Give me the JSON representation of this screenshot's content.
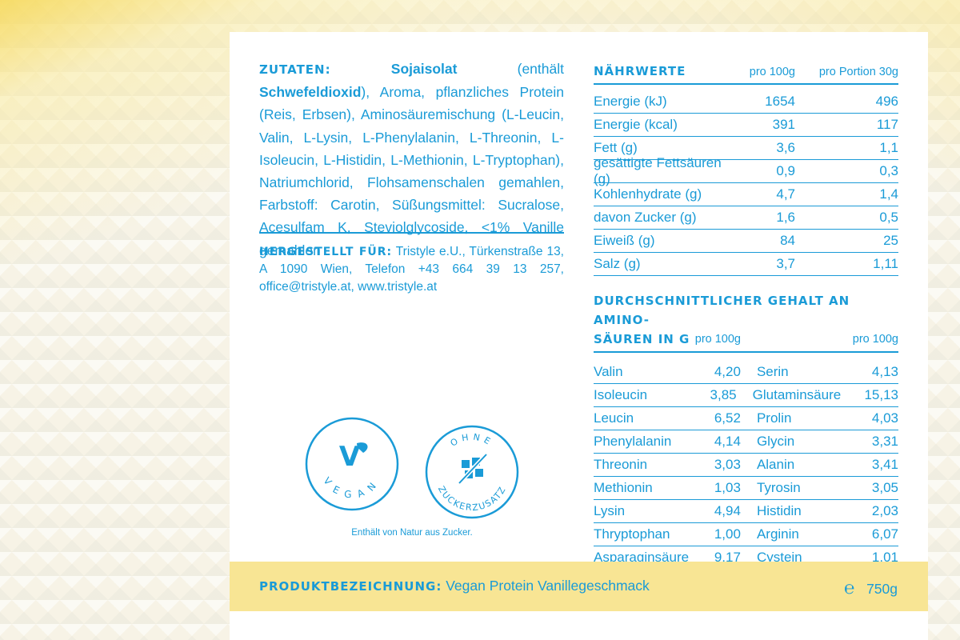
{
  "ingredients": {
    "heading": "ZUTATEN:",
    "parts": [
      {
        "text": "Sojaisolat",
        "bold": true
      },
      {
        "text": " (enthält ",
        "bold": false
      },
      {
        "text": "Schwefeldioxid",
        "bold": true
      },
      {
        "text": "), Aroma, pflanzliches Protein (Reis, Erbsen), Aminosäuremischung (L-Leucin, Valin, L-Lysin, L-Phenylalanin, L-Threonin, L-Isoleucin, L-Histidin, L-Methionin, L-Tryptophan), Natriumchlorid, Flohsamenschalen gemahlen, Farbstoff: Carotin, Süßungsmittel: Sucralose, Acesulfam K, Steviolglycoside, <1% Vanille gemahlen",
        "bold": false
      }
    ]
  },
  "manufacturer": {
    "heading": "HERGESTELLT FÜR:",
    "text": "Tristyle e.U., Türkenstraße 13, A 1090 Wien, Telefon +43 664 39 13 257, office@tristyle.at, www.tristyle.at"
  },
  "nutrition": {
    "heading": "NÄHRWERTE",
    "col1": "pro 100g",
    "col2": "pro Portion 30g",
    "rows": [
      {
        "name": "Energie (kJ)",
        "per100": "1654",
        "portion": "496"
      },
      {
        "name": "Energie (kcal)",
        "per100": "391",
        "portion": "117"
      },
      {
        "name": "Fett (g)",
        "per100": "3,6",
        "portion": "1,1"
      },
      {
        "name": "gesättigte Fettsäuren (g)",
        "per100": "0,9",
        "portion": "0,3"
      },
      {
        "name": "Kohlenhydrate (g)",
        "per100": "4,7",
        "portion": "1,4"
      },
      {
        "name": "davon Zucker (g)",
        "per100": "1,6",
        "portion": "0,5"
      },
      {
        "name": "Eiweiß (g)",
        "per100": "84",
        "portion": "25"
      },
      {
        "name": "Salz (g)",
        "per100": "3,7",
        "portion": "1,11"
      }
    ]
  },
  "amino": {
    "heading_line1": "DURCHSCHNITTLICHER GEHALT AN AMINO-",
    "heading_line2": "SÄUREN IN G",
    "col_left": "pro 100g",
    "col_right": "pro 100g",
    "rows": [
      {
        "n1": "Valin",
        "v1": "4,20",
        "n2": "Serin",
        "v2": "4,13"
      },
      {
        "n1": "Isoleucin",
        "v1": "3,85",
        "n2": "Glutaminsäure",
        "v2": "15,13"
      },
      {
        "n1": "Leucin",
        "v1": "6,52",
        "n2": "Prolin",
        "v2": "4,03"
      },
      {
        "n1": "Phenylalanin",
        "v1": "4,14",
        "n2": "Glycin",
        "v2": "3,31"
      },
      {
        "n1": "Threonin",
        "v1": "3,03",
        "n2": "Alanin",
        "v2": "3,41"
      },
      {
        "n1": "Methionin",
        "v1": "1,03",
        "n2": "Tyrosin",
        "v2": "3,05"
      },
      {
        "n1": "Lysin",
        "v1": "4,94",
        "n2": "Histidin",
        "v2": "2,03"
      },
      {
        "n1": "Thryptophan",
        "v1": "1,00",
        "n2": "Arginin",
        "v2": "6,07"
      },
      {
        "n1": "Asparaginsäure",
        "v1": "9,17",
        "n2": "Cystein",
        "v2": "1,01"
      }
    ]
  },
  "badges": {
    "vegan_letter": "V",
    "vegan_text": "VEGAN",
    "sugar_top": "OHNE",
    "sugar_bottom": "ZUCKERZUSATZ",
    "note": "Enthält von Natur aus Zucker."
  },
  "product": {
    "heading": "PRODUKTBEZEICHNUNG:",
    "name": "Vegan Protein Vanillegeschmack",
    "estimate_mark": "℮",
    "weight": "750g"
  },
  "colors": {
    "accent": "#1a9bd7",
    "footer": "#f8e594",
    "card": "#ffffff"
  }
}
